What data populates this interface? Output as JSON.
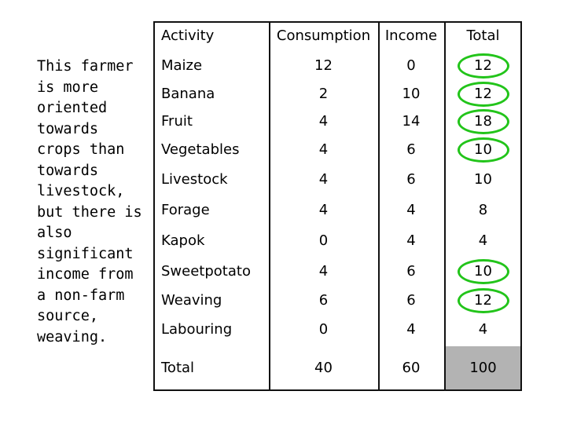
{
  "side_note": "This farmer\nis more\noriented\ntowards\ncrops than\ntowards\nlivestock,\nbut there is\nalso\nsignificant\nincome from\na non-farm\nsource,\nweaving.",
  "table": {
    "headers": [
      "Activity",
      "Consumption",
      "Income",
      "Total"
    ],
    "rows": [
      {
        "activity": "Maize",
        "consumption": "12",
        "income": "0",
        "total": "12",
        "circled": true
      },
      {
        "activity": "Banana",
        "consumption": "2",
        "income": "10",
        "total": "12",
        "circled": true
      },
      {
        "activity": "Fruit",
        "consumption": "4",
        "income": "14",
        "total": "18",
        "circled": true
      },
      {
        "activity": "Vegetables",
        "consumption": "4",
        "income": "6",
        "total": "10",
        "circled": true
      },
      {
        "activity": "Livestock",
        "consumption": "4",
        "income": "6",
        "total": "10",
        "circled": false
      },
      {
        "activity": "Forage",
        "consumption": "4",
        "income": "4",
        "total": "8",
        "circled": false
      },
      {
        "activity": "Kapok",
        "consumption": "0",
        "income": "4",
        "total": "4",
        "circled": false
      },
      {
        "activity": "Sweetpotato",
        "consumption": "4",
        "income": "6",
        "total": "10",
        "circled": true
      },
      {
        "activity": "Weaving",
        "consumption": "6",
        "income": "6",
        "total": "12",
        "circled": true
      },
      {
        "activity": "Labouring",
        "consumption": "0",
        "income": "4",
        "total": "4",
        "circled": false
      }
    ],
    "total_row": {
      "activity": "Total",
      "consumption": "40",
      "income": "60",
      "total": "100"
    }
  },
  "colors": {
    "circle": "#22c41a",
    "total_highlight": "#b3b3b3",
    "grid": "#111111"
  }
}
